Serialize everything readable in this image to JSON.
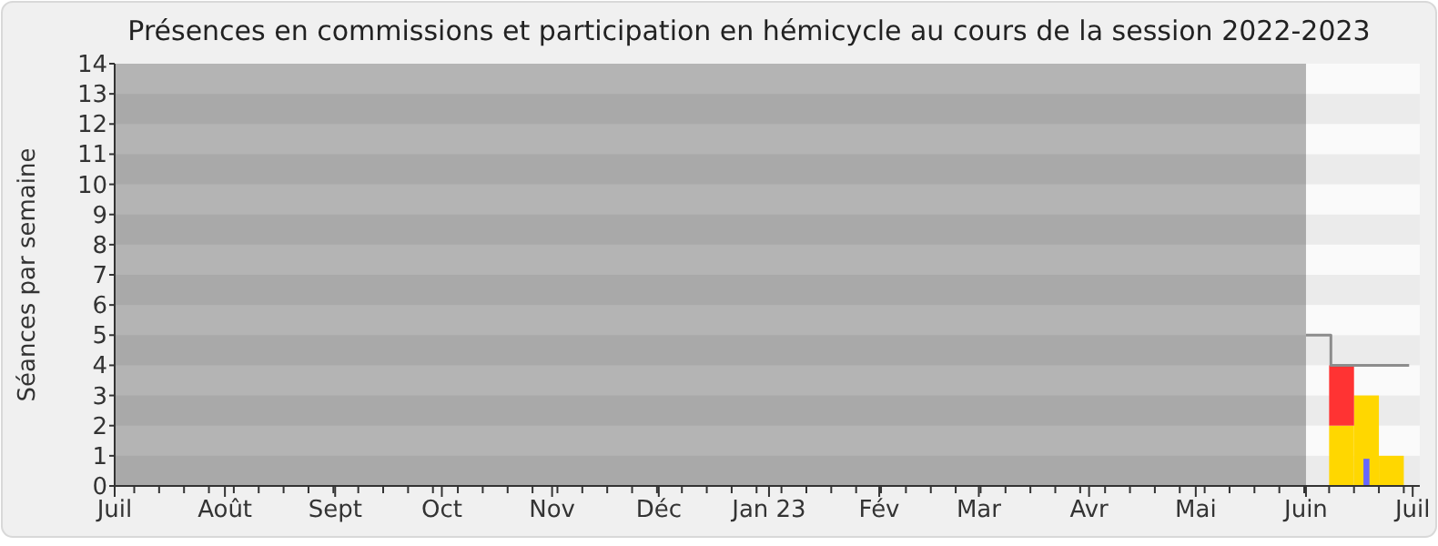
{
  "chart_data": {
    "type": "bar",
    "title": "Présences en commissions et participation en hémicycle au cours de la session 2022-2023",
    "ylabel": "Séances par semaine",
    "x": [
      "2023-06-11",
      "2023-06-18",
      "2023-06-25"
    ],
    "series": [
      {
        "color": "#ffd700",
        "values": [
          2,
          3,
          1
        ]
      },
      {
        "color": "#ff3333",
        "base": [
          2,
          null,
          null
        ],
        "values": [
          2,
          null,
          null
        ]
      },
      {
        "type": "bar",
        "color": "#6666ff",
        "values": [
          null,
          0.9,
          null
        ]
      },
      {
        "type": "line",
        "color": "#8c8c8c",
        "x": [
          "2023-06-01",
          "2023-06-08",
          "2023-06-08",
          "2023-06-30"
        ],
        "values": [
          5,
          5,
          4,
          4
        ]
      }
    ],
    "xlim": [
      "2022-07-01",
      "2023-07-03"
    ],
    "xticks": [
      {
        "value": "2022-07-01",
        "label": "Juil"
      },
      {
        "value": "2022-08-01",
        "label": "Août"
      },
      {
        "value": "2022-09-01",
        "label": "Sept"
      },
      {
        "value": "2022-10-01",
        "label": "Oct"
      },
      {
        "value": "2022-11-01",
        "label": "Nov"
      },
      {
        "value": "2022-12-01",
        "label": "Déc"
      },
      {
        "value": "2023-01-01",
        "label": "Jan 23"
      },
      {
        "value": "2023-02-01",
        "label": "Fév"
      },
      {
        "value": "2023-03-01",
        "label": "Mar"
      },
      {
        "value": "2023-04-01",
        "label": "Avr"
      },
      {
        "value": "2023-05-01",
        "label": "Mai"
      },
      {
        "value": "2023-06-01",
        "label": "Juin"
      },
      {
        "value": "2023-07-01",
        "label": "Juil"
      }
    ],
    "ylim": [
      0,
      14
    ],
    "yticks": [
      0,
      1,
      2,
      3,
      4,
      5,
      6,
      7,
      8,
      9,
      10,
      11,
      12,
      13,
      14
    ],
    "bands": [
      {
        "axis": "x",
        "from": "2022-07-01",
        "to": "2023-06-01",
        "color": "#b4b4b4"
      }
    ]
  }
}
